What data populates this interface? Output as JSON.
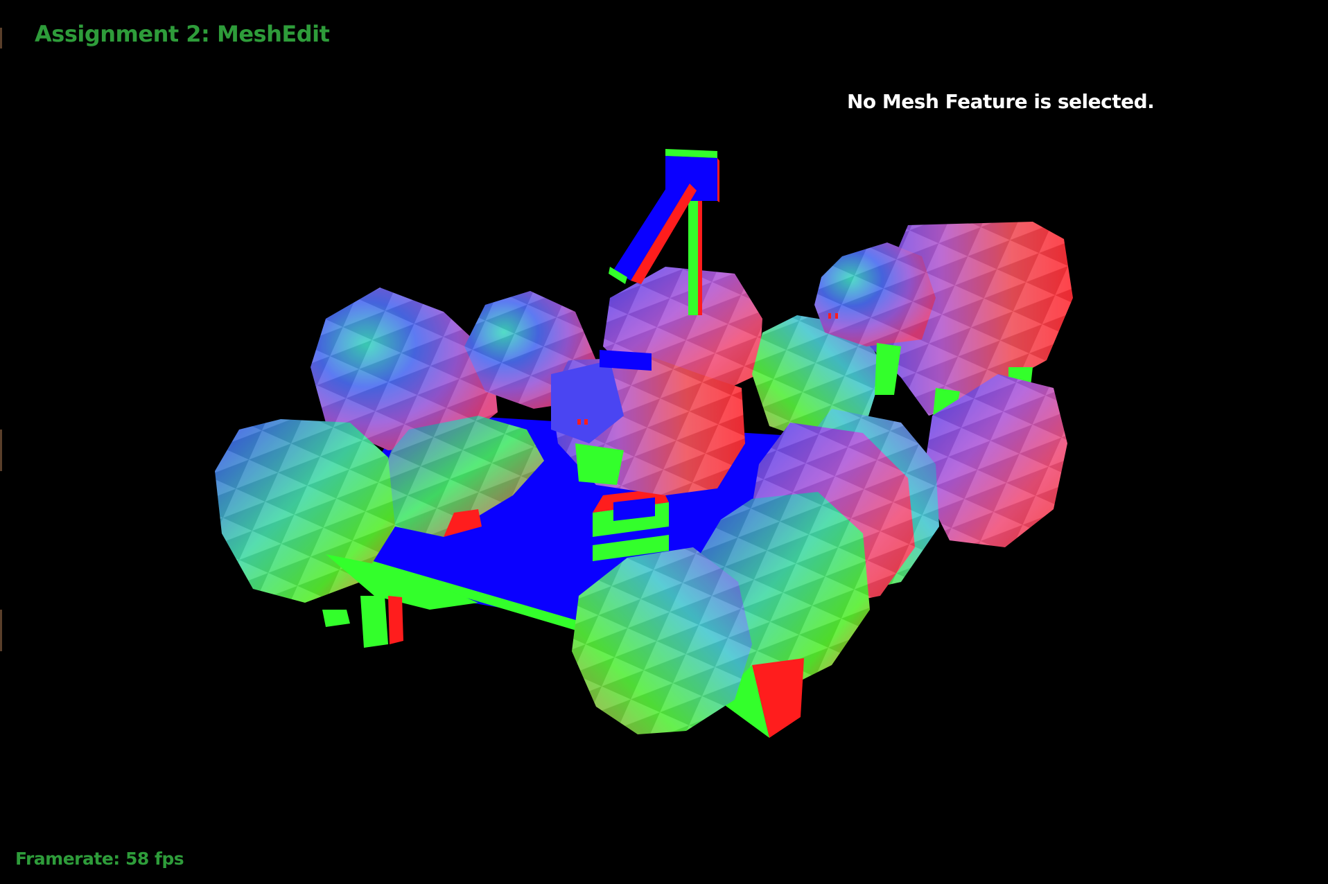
{
  "app": {
    "title": "Assignment 2: MeshEdit"
  },
  "status": {
    "selection_text": "No Mesh Feature is selected.",
    "framerate_label": "Framerate:",
    "framerate_value": 58,
    "framerate_unit": "fps"
  },
  "colors": {
    "background": "#000000",
    "title_green": "#2e9c3a",
    "status_white": "#ffffff"
  }
}
